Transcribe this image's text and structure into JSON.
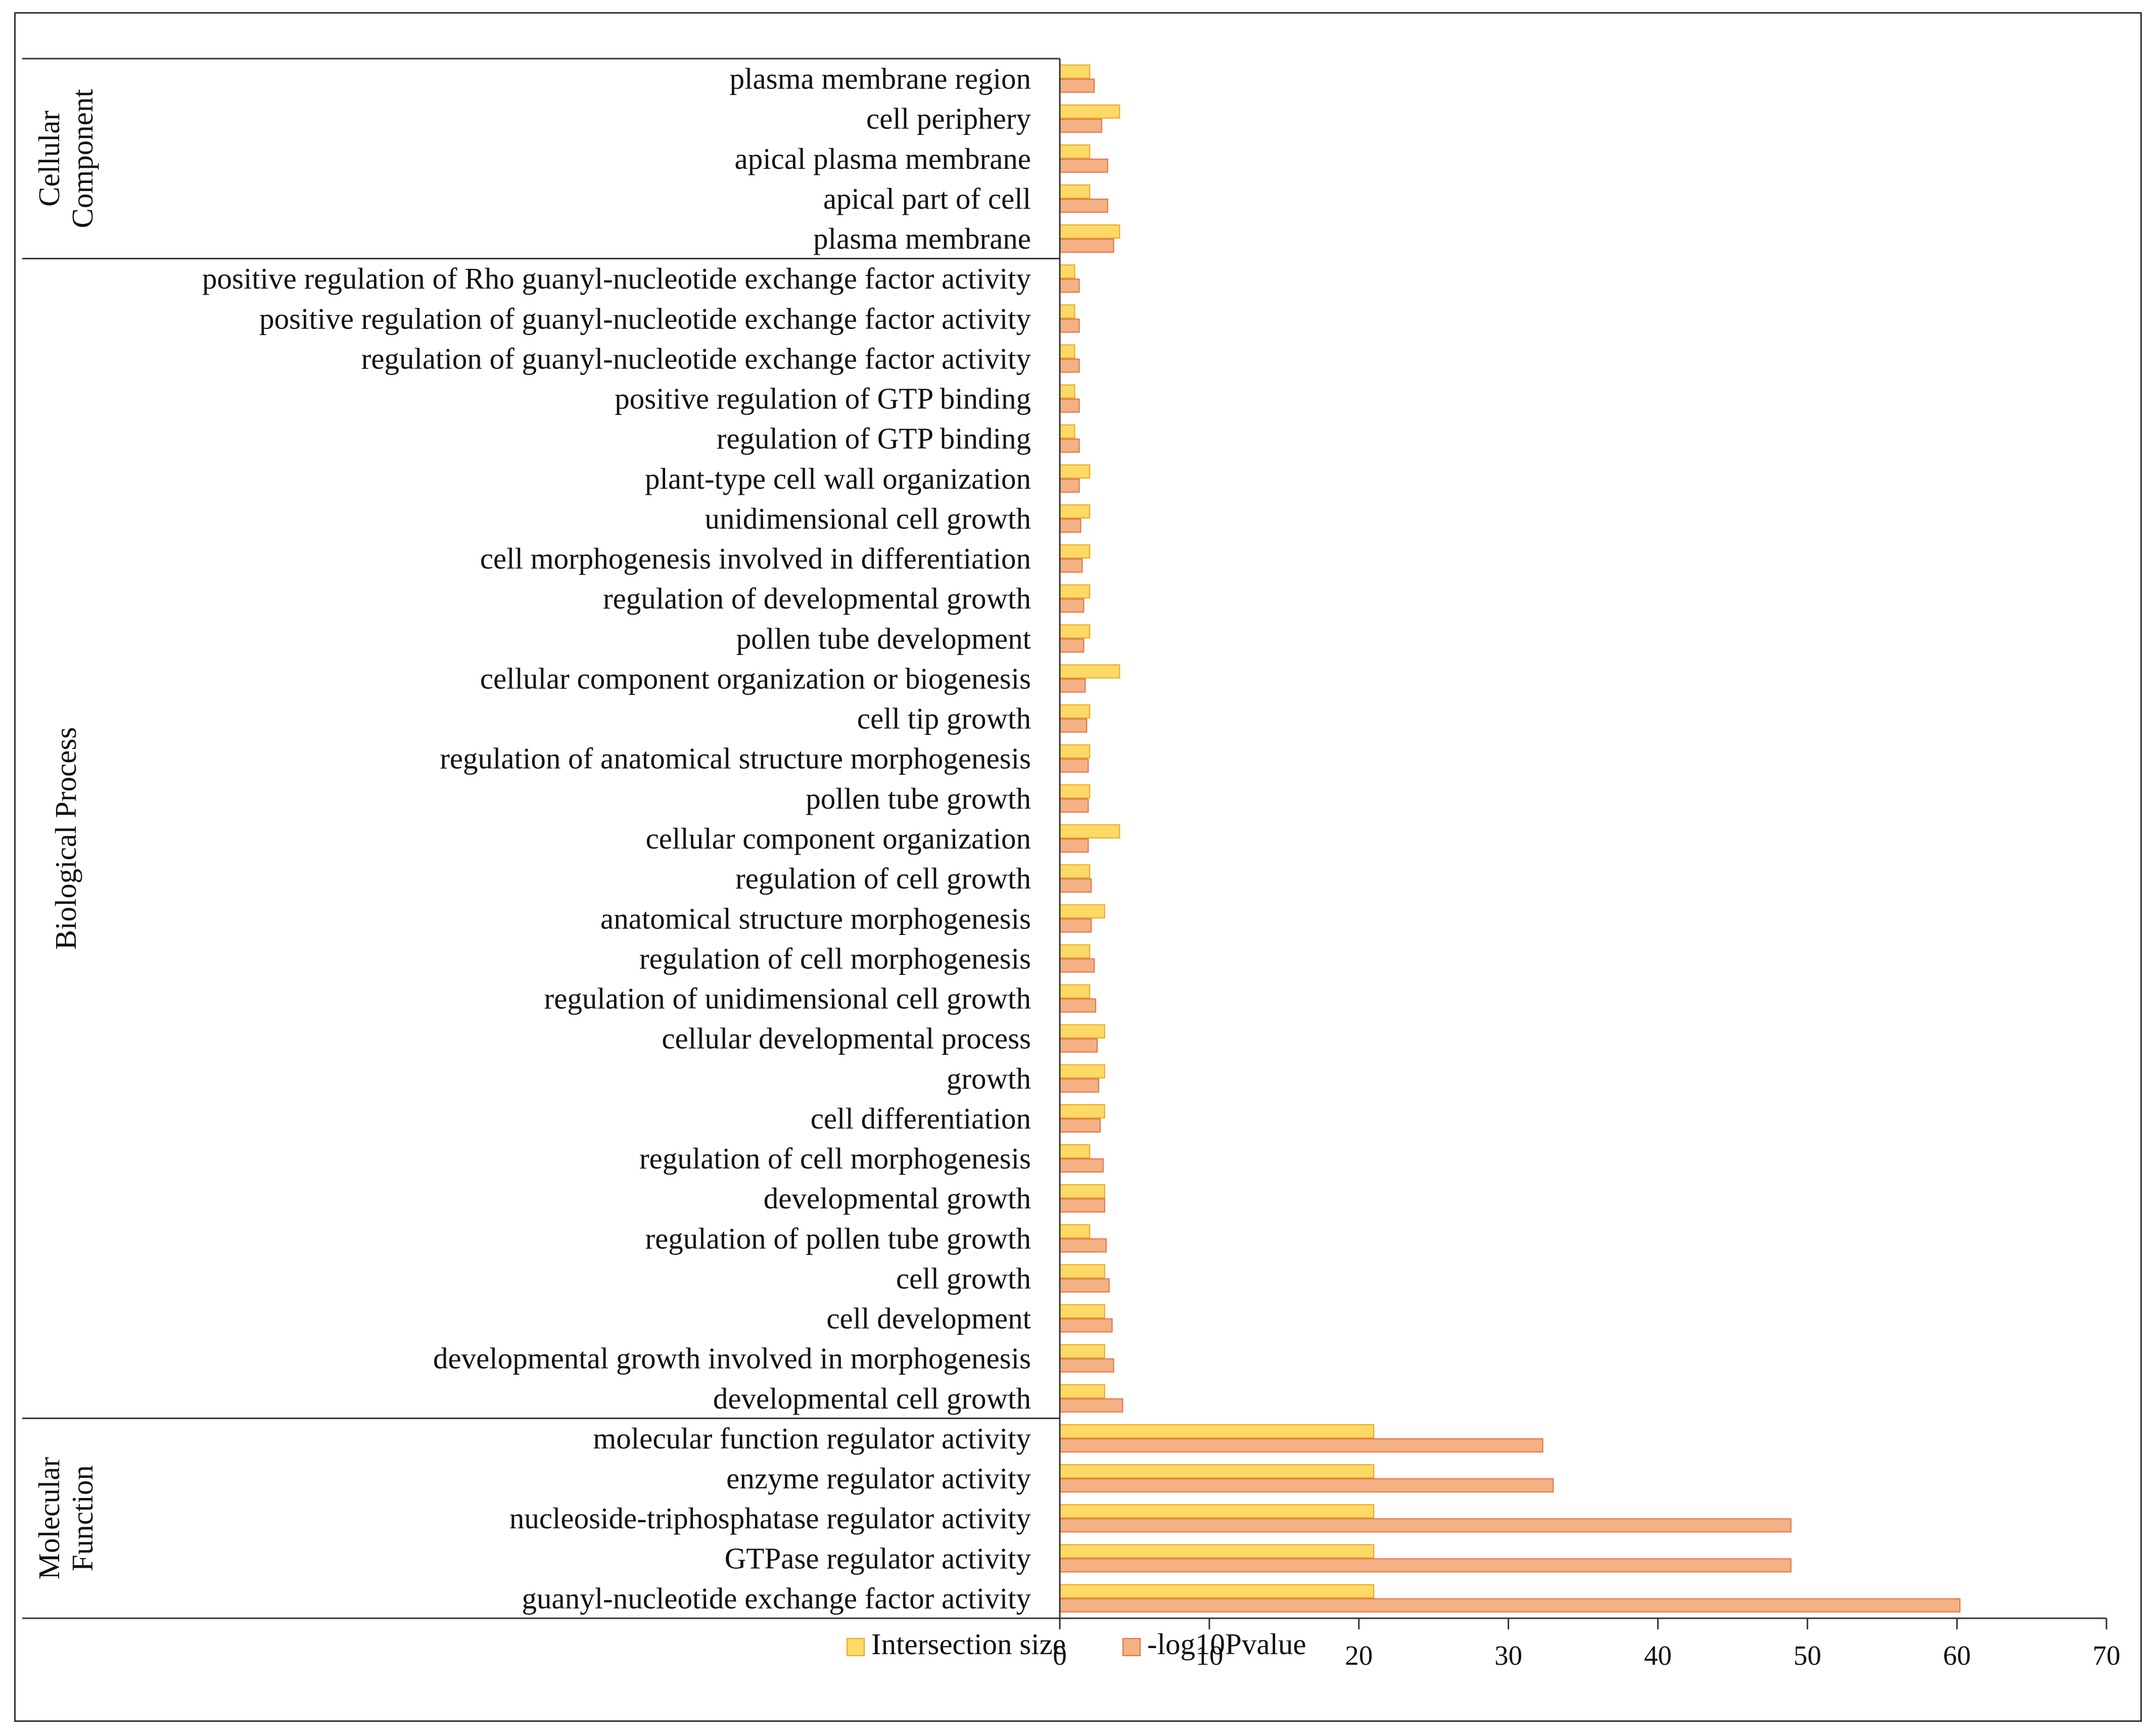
{
  "chart_data": {
    "type": "bar",
    "orientation": "horizontal",
    "title": "",
    "xlabel": "",
    "ylabel": "",
    "xlim": [
      0,
      70
    ],
    "xticks": [
      0,
      10,
      20,
      30,
      40,
      50,
      60,
      70
    ],
    "grid": false,
    "legend_position": "bottom",
    "colors": {
      "intersection": "#FFD966",
      "intersection_edge": "#E6A820",
      "pvalue": "#F4B183",
      "pvalue_edge": "#E07048",
      "axis": "#333333"
    },
    "series": [
      {
        "name": "Intersection size",
        "key": "intersection"
      },
      {
        "name": "-log10Pvalue",
        "key": "pvalue"
      }
    ],
    "groups": [
      {
        "name": "Cellular Component",
        "label_lines": [
          "Cellular",
          "Component"
        ],
        "categories": [
          {
            "label": "plasma membrane region",
            "intersection": 2,
            "pvalue": 2.3
          },
          {
            "label": "cell periphery",
            "intersection": 4,
            "pvalue": 2.8
          },
          {
            "label": "apical plasma membrane",
            "intersection": 2,
            "pvalue": 3.2
          },
          {
            "label": "apical part of cell",
            "intersection": 2,
            "pvalue": 3.2
          },
          {
            "label": "plasma membrane",
            "intersection": 4,
            "pvalue": 3.6
          }
        ]
      },
      {
        "name": "Biological Process",
        "label_lines": [
          "Biological Process"
        ],
        "categories": [
          {
            "label": "positive regulation of Rho guanyl-nucleotide exchange factor activity",
            "intersection": 1,
            "pvalue": 1.3
          },
          {
            "label": "positive regulation of guanyl-nucleotide exchange factor activity",
            "intersection": 1,
            "pvalue": 1.3
          },
          {
            "label": "regulation of guanyl-nucleotide exchange factor activity",
            "intersection": 1,
            "pvalue": 1.3
          },
          {
            "label": "positive regulation of GTP binding",
            "intersection": 1,
            "pvalue": 1.3
          },
          {
            "label": "regulation of GTP binding",
            "intersection": 1,
            "pvalue": 1.3
          },
          {
            "label": "plant-type cell wall organization",
            "intersection": 2,
            "pvalue": 1.3
          },
          {
            "label": "unidimensional cell growth",
            "intersection": 2,
            "pvalue": 1.4
          },
          {
            "label": "cell morphogenesis involved in differentiation",
            "intersection": 2,
            "pvalue": 1.5
          },
          {
            "label": "regulation of developmental growth",
            "intersection": 2,
            "pvalue": 1.6
          },
          {
            "label": "pollen tube development",
            "intersection": 2,
            "pvalue": 1.6
          },
          {
            "label": "cellular component organization or biogenesis",
            "intersection": 4,
            "pvalue": 1.7
          },
          {
            "label": "cell tip growth",
            "intersection": 2,
            "pvalue": 1.8
          },
          {
            "label": "regulation of anatomical structure morphogenesis",
            "intersection": 2,
            "pvalue": 1.9
          },
          {
            "label": "pollen tube growth",
            "intersection": 2,
            "pvalue": 1.9
          },
          {
            "label": "cellular component organization",
            "intersection": 4,
            "pvalue": 1.9
          },
          {
            "label": "regulation of cell growth",
            "intersection": 2,
            "pvalue": 2.1
          },
          {
            "label": "anatomical structure morphogenesis",
            "intersection": 3,
            "pvalue": 2.1
          },
          {
            "label": "regulation of cell morphogenesis",
            "intersection": 2,
            "pvalue": 2.3
          },
          {
            "label": "regulation of unidimensional cell growth",
            "intersection": 2,
            "pvalue": 2.4
          },
          {
            "label": "cellular developmental process",
            "intersection": 3,
            "pvalue": 2.5
          },
          {
            "label": "growth",
            "intersection": 3,
            "pvalue": 2.6
          },
          {
            "label": "cell differentiation",
            "intersection": 3,
            "pvalue": 2.7
          },
          {
            "label": "regulation of cell morphogenesis",
            "intersection": 2,
            "pvalue": 2.9
          },
          {
            "label": "developmental growth",
            "intersection": 3,
            "pvalue": 3.0
          },
          {
            "label": "regulation of pollen tube growth",
            "intersection": 2,
            "pvalue": 3.1
          },
          {
            "label": "cell growth",
            "intersection": 3,
            "pvalue": 3.3
          },
          {
            "label": "cell development",
            "intersection": 3,
            "pvalue": 3.5
          },
          {
            "label": "developmental growth involved in morphogenesis",
            "intersection": 3,
            "pvalue": 3.6
          },
          {
            "label": "developmental cell growth",
            "intersection": 3,
            "pvalue": 4.2
          }
        ]
      },
      {
        "name": "Molecular Function",
        "label_lines": [
          "Molecular",
          "Function"
        ],
        "categories": [
          {
            "label": "molecular function regulator activity",
            "intersection": 21,
            "pvalue": 32.3
          },
          {
            "label": "enzyme regulator activity",
            "intersection": 21,
            "pvalue": 33.0
          },
          {
            "label": "nucleoside-triphosphatase regulator activity",
            "intersection": 21,
            "pvalue": 48.9
          },
          {
            "label": "GTPase regulator activity",
            "intersection": 21,
            "pvalue": 48.9
          },
          {
            "label": "guanyl-nucleotide exchange factor activity",
            "intersection": 21,
            "pvalue": 60.2
          }
        ]
      }
    ]
  }
}
